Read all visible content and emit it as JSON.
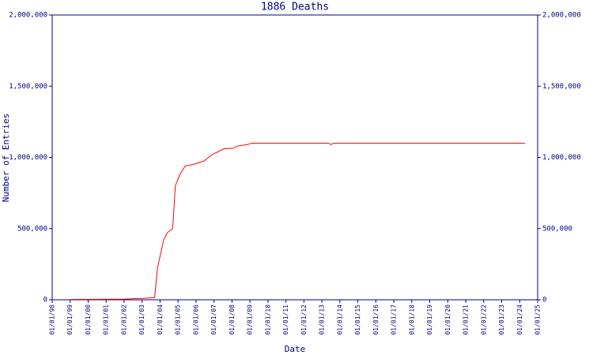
{
  "chart_data": {
    "type": "line",
    "title": "1886 Deaths",
    "x_label": "Date",
    "y_label": "Number of Entries",
    "x": [
      1999.0,
      2002.0,
      2003.0,
      2003.7,
      2003.85,
      2004.2,
      2004.4,
      2004.7,
      2004.85,
      2005.1,
      2005.4,
      2005.85,
      2006.45,
      2006.9,
      2007.55,
      2008.1,
      2008.3,
      2008.85,
      2009.1,
      2013.35,
      2013.5,
      2013.65,
      2024.3
    ],
    "series": [
      {
        "name": "1886 Deaths",
        "color": "#ff0000",
        "values": [
          2000,
          5000,
          10000,
          15000,
          220000,
          420000,
          470000,
          500000,
          800000,
          880000,
          940000,
          950000,
          975000,
          1020000,
          1060000,
          1065000,
          1080000,
          1090000,
          1100000,
          1100000,
          1090000,
          1100000,
          1100000
        ]
      }
    ],
    "xlim": [
      1998,
      2025
    ],
    "xticks": [
      {
        "value": 1998,
        "label": "01/01/98"
      },
      {
        "value": 1999,
        "label": "01/01/99"
      },
      {
        "value": 2000,
        "label": "01/01/00"
      },
      {
        "value": 2001,
        "label": "01/01/01"
      },
      {
        "value": 2002,
        "label": "01/01/02"
      },
      {
        "value": 2003,
        "label": "01/01/03"
      },
      {
        "value": 2004,
        "label": "01/01/04"
      },
      {
        "value": 2005,
        "label": "01/01/05"
      },
      {
        "value": 2006,
        "label": "01/01/06"
      },
      {
        "value": 2007,
        "label": "01/01/07"
      },
      {
        "value": 2008,
        "label": "01/01/08"
      },
      {
        "value": 2009,
        "label": "01/01/09"
      },
      {
        "value": 2010,
        "label": "01/01/10"
      },
      {
        "value": 2011,
        "label": "01/01/11"
      },
      {
        "value": 2012,
        "label": "01/01/12"
      },
      {
        "value": 2013,
        "label": "01/01/13"
      },
      {
        "value": 2014,
        "label": "01/01/14"
      },
      {
        "value": 2015,
        "label": "01/01/15"
      },
      {
        "value": 2016,
        "label": "01/01/16"
      },
      {
        "value": 2017,
        "label": "01/01/17"
      },
      {
        "value": 2018,
        "label": "01/01/18"
      },
      {
        "value": 2019,
        "label": "01/01/19"
      },
      {
        "value": 2020,
        "label": "01/01/20"
      },
      {
        "value": 2021,
        "label": "01/01/21"
      },
      {
        "value": 2022,
        "label": "01/01/22"
      },
      {
        "value": 2023,
        "label": "01/01/23"
      },
      {
        "value": 2024,
        "label": "01/01/24"
      },
      {
        "value": 2025,
        "label": "01/01/25"
      }
    ],
    "ylim": [
      0,
      2000000
    ],
    "yticks": [
      0,
      {
        "value": 500000,
        "label": "500,000"
      },
      {
        "value": 1000000,
        "label": "1,000,000"
      },
      {
        "value": 1500000,
        "label": "1,500,000"
      },
      {
        "value": 2000000,
        "label": "2,000,000"
      }
    ],
    "grid": false
  }
}
